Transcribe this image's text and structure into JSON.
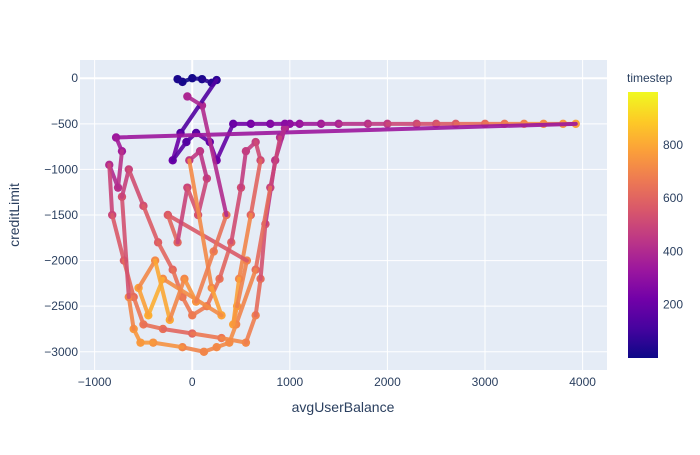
{
  "chart_data": {
    "type": "scatter",
    "xlabel": "avgUserBalance",
    "ylabel": "creditLimit",
    "xlim": [
      -1150,
      4250
    ],
    "ylim": [
      -3200,
      200
    ],
    "x_ticks": [
      -1000,
      0,
      1000,
      2000,
      3000,
      4000
    ],
    "x_tick_labels": [
      "−1000",
      "0",
      "1000",
      "2000",
      "3000",
      "4000"
    ],
    "y_ticks": [
      0,
      -500,
      -1000,
      -1500,
      -2000,
      -2500,
      -3000
    ],
    "y_tick_labels": [
      "0",
      "−500",
      "−1000",
      "−1500",
      "−2000",
      "−2500",
      "−3000"
    ],
    "grid": true,
    "plot_background": "#e5ecf6",
    "colorscale": [
      "#0d0887",
      "#46039f",
      "#7201a8",
      "#9c179e",
      "#bd3786",
      "#d8576b",
      "#ed7953",
      "#fb9f3a",
      "#fdca26",
      "#f0f921"
    ],
    "colorbar": {
      "title": "timestep",
      "range": [
        0,
        999
      ],
      "ticks": [
        200,
        400,
        600,
        800
      ],
      "tick_labels": [
        "200",
        "400",
        "600",
        "800"
      ]
    },
    "series": [
      {
        "timestep_range": [
          0,
          999
        ],
        "points": [
          [
            -150,
            -10
          ],
          [
            -100,
            -40
          ],
          [
            0,
            0
          ],
          [
            100,
            -10
          ],
          [
            200,
            -50
          ],
          [
            250,
            -20
          ],
          [
            -120,
            -600
          ],
          [
            -200,
            -900
          ],
          [
            -60,
            -700
          ],
          [
            40,
            -600
          ],
          [
            180,
            -700
          ],
          [
            250,
            -900
          ],
          [
            420,
            -500
          ],
          [
            600,
            -500
          ],
          [
            800,
            -500
          ],
          [
            950,
            -500
          ],
          [
            1000,
            -500
          ],
          [
            1100,
            -500
          ],
          [
            1320,
            -500
          ],
          [
            1500,
            -500
          ],
          [
            1800,
            -500
          ],
          [
            2000,
            -500
          ],
          [
            2300,
            -500
          ],
          [
            2500,
            -500
          ],
          [
            2700,
            -500
          ],
          [
            3000,
            -500
          ],
          [
            3200,
            -500
          ],
          [
            3400,
            -500
          ],
          [
            3600,
            -500
          ],
          [
            3800,
            -500
          ],
          [
            3930,
            -500
          ],
          [
            -780,
            -650
          ],
          [
            -720,
            -800
          ],
          [
            -760,
            -1200
          ],
          [
            -850,
            -950
          ],
          [
            -820,
            -1500
          ],
          [
            -700,
            -2000
          ],
          [
            -600,
            -2400
          ],
          [
            -500,
            -2700
          ],
          [
            -300,
            -2750
          ],
          [
            0,
            -2800
          ],
          [
            300,
            -2850
          ],
          [
            550,
            -2900
          ],
          [
            650,
            -2600
          ],
          [
            700,
            -2200
          ],
          [
            750,
            -1600
          ],
          [
            850,
            -900
          ],
          [
            950,
            -550
          ],
          [
            900,
            -650
          ],
          [
            800,
            -1200
          ],
          [
            650,
            -2100
          ],
          [
            450,
            -2700
          ],
          [
            380,
            -2900
          ],
          [
            250,
            -2950
          ],
          [
            120,
            -3000
          ],
          [
            -100,
            -2950
          ],
          [
            -400,
            -2900
          ],
          [
            -530,
            -2900
          ],
          [
            -600,
            -2750
          ],
          [
            -650,
            -2400
          ],
          [
            -720,
            -1300
          ],
          [
            -650,
            -1000
          ],
          [
            -500,
            -1400
          ],
          [
            -350,
            -1800
          ],
          [
            -200,
            -2100
          ],
          [
            -100,
            -2400
          ],
          [
            0,
            -2600
          ],
          [
            150,
            -2500
          ],
          [
            280,
            -2200
          ],
          [
            400,
            -1800
          ],
          [
            500,
            -1200
          ],
          [
            550,
            -800
          ],
          [
            650,
            -700
          ],
          [
            700,
            -900
          ],
          [
            600,
            -1500
          ],
          [
            480,
            -2200
          ],
          [
            420,
            -2700
          ],
          [
            460,
            -2500
          ],
          [
            560,
            -2000
          ],
          [
            -250,
            -1500
          ],
          [
            -150,
            -1800
          ],
          [
            -50,
            -1200
          ],
          [
            60,
            -1500
          ],
          [
            150,
            -1100
          ],
          [
            80,
            -800
          ],
          [
            -30,
            -900
          ],
          [
            200,
            -2300
          ],
          [
            300,
            -2600
          ],
          [
            -300,
            -2200
          ],
          [
            -450,
            -2600
          ],
          [
            -550,
            -2300
          ],
          [
            -380,
            -2000
          ],
          [
            -230,
            -2650
          ],
          [
            -80,
            -2200
          ],
          [
            40,
            -2450
          ],
          [
            220,
            -1900
          ],
          [
            350,
            -1500
          ],
          [
            100,
            -300
          ],
          [
            -50,
            -200
          ]
        ]
      }
    ]
  }
}
